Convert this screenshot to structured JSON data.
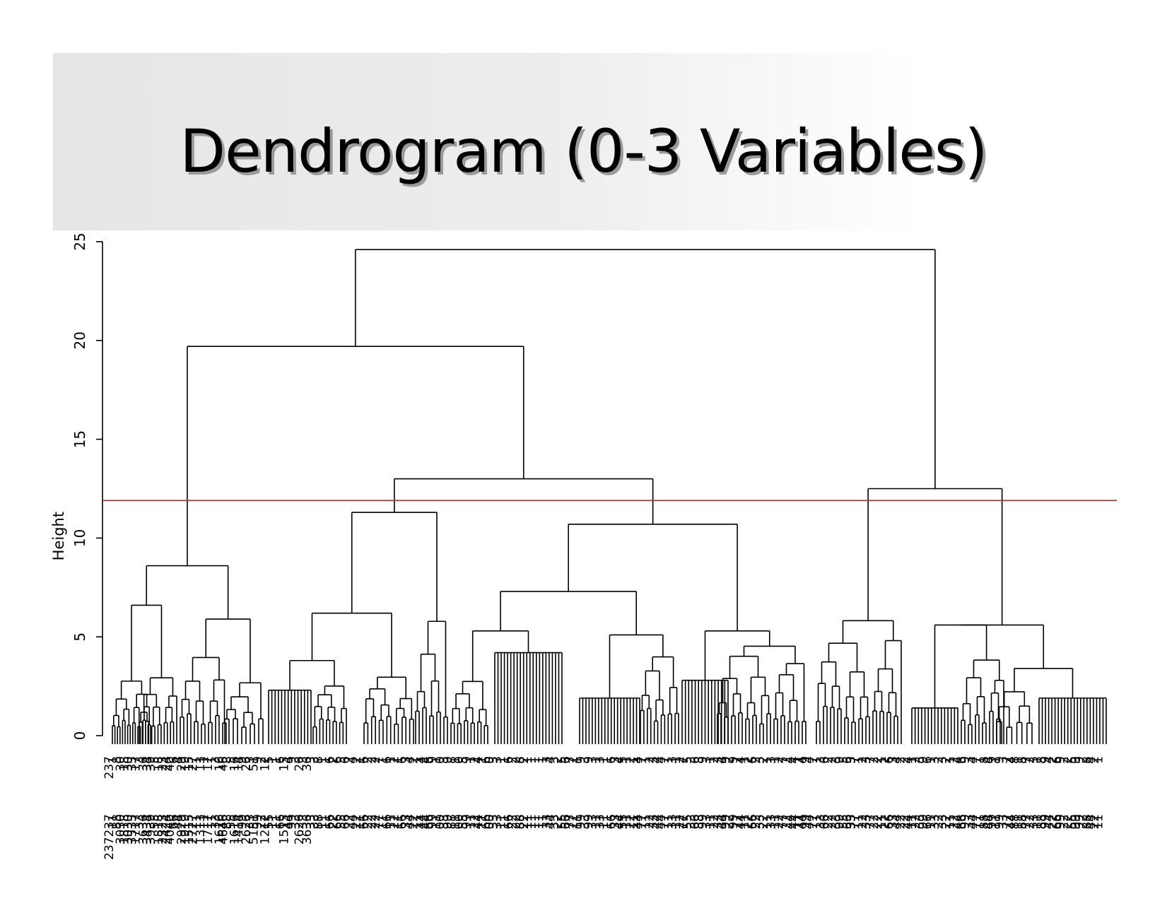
{
  "slide": {
    "title": "Dendrogram (0-3 Variables)"
  },
  "chart_data": {
    "type": "dendrogram",
    "ylabel": "Height",
    "ylim": [
      0,
      25
    ],
    "yticks": [
      0,
      5,
      10,
      15,
      20,
      25
    ],
    "cut_height": 11.9,
    "cut_line_color": "#a0403c",
    "leaf_label_groups": [
      [
        "237",
        "1",
        "8",
        "30",
        "18",
        "30",
        "33",
        "17",
        "3",
        "36",
        "34",
        "39",
        "5",
        "18",
        "23",
        "24",
        "40",
        "6",
        "4",
        "29",
        "19",
        "15",
        "27",
        "1",
        "13"
      ],
      [
        "1",
        "17",
        "1",
        "3",
        "16",
        "46",
        "8",
        "5",
        "16",
        "14",
        "9",
        "26",
        "3",
        "51",
        "9",
        "2",
        "12",
        "5",
        "1",
        "1",
        "6",
        "15",
        "4",
        "9"
      ],
      [
        "3",
        "26",
        "3",
        "36",
        "3",
        "3",
        "8",
        "1",
        "1",
        "6",
        "2",
        "6",
        "5",
        "6",
        "2",
        "4",
        "2",
        "1",
        "6",
        "2",
        "2",
        "2",
        "7",
        "1"
      ],
      [
        "6",
        "1",
        "2",
        "1",
        "6",
        "3",
        "4",
        "2",
        "1",
        "4",
        "4",
        "6",
        "9",
        "1",
        "0",
        "3",
        "9",
        "8",
        "1",
        "0",
        "5",
        "9",
        "1",
        "2",
        "4",
        "1",
        "6",
        "0",
        "3"
      ],
      [
        "3",
        "1",
        "1",
        "6",
        "2",
        "2",
        "8",
        "2",
        "1",
        "1",
        "1",
        "1",
        "1",
        "3",
        "4",
        "3",
        "2",
        "5",
        "6",
        "7",
        "2",
        "1",
        "9",
        "3",
        "9",
        "3",
        "1",
        "3",
        "1"
      ],
      [
        "1",
        "6",
        "3",
        "4",
        "5",
        "1",
        "2",
        "1",
        "4",
        "7",
        "1",
        "2",
        "3",
        "4",
        "4",
        "7",
        "1",
        "3",
        "1",
        "2",
        "7",
        "5",
        "3",
        "6",
        "8",
        "9"
      ],
      [
        "3",
        "1",
        "2",
        "3",
        "4",
        "9",
        "2",
        "9",
        "7",
        "4",
        "1",
        "2",
        "6",
        "2",
        "3",
        "2",
        "1",
        "3",
        "1",
        "2",
        "7",
        "2",
        "4",
        "4",
        "1",
        "4",
        "9",
        "4",
        "7"
      ],
      [
        "1",
        "3",
        "6",
        "2",
        "2",
        "3",
        "9",
        "5",
        "6",
        "3",
        "7",
        "1",
        "2",
        "3",
        "7",
        "2",
        "2",
        "1",
        "2",
        "6",
        "3",
        "4",
        "2",
        "2"
      ],
      [
        "4",
        "1",
        "2",
        "3",
        "9",
        "6",
        "1",
        "3",
        "2",
        "3",
        "2",
        "1",
        "2",
        "4",
        "6",
        "9",
        "3",
        "4",
        "7",
        "1",
        "8",
        "4",
        "9"
      ],
      [
        "1",
        "9",
        "3",
        "7",
        "4",
        "8",
        "1",
        "8",
        "7",
        "2",
        "3",
        "1",
        "8",
        "9",
        "4",
        "2",
        "6",
        "9",
        "2",
        "2",
        "5",
        "9",
        "9",
        "2",
        "8",
        "4",
        "2",
        "1"
      ]
    ],
    "labels_visible": {
      "group1": [
        "1",
        "8",
        "18",
        "23",
        "30",
        "34",
        "39",
        "5",
        "1",
        "3"
      ],
      "group2": [
        "13",
        "49",
        "59",
        "126",
        "1",
        "6"
      ],
      "group3": [
        "48",
        "46",
        "27",
        "61"
      ],
      "group4": [
        "144",
        "159",
        "109"
      ],
      "group5": [
        "8",
        "109",
        "1",
        "11"
      ],
      "group6": [
        "53",
        "131"
      ],
      "group7": [
        "147",
        "6",
        "4"
      ],
      "group8": [
        "49",
        "90",
        "63"
      ],
      "group9": [
        "47",
        "14"
      ],
      "group10": [
        "164",
        "36",
        "22",
        "5",
        "111",
        "1"
      ],
      "group11": [
        "88",
        "1",
        "49",
        "244"
      ]
    }
  }
}
